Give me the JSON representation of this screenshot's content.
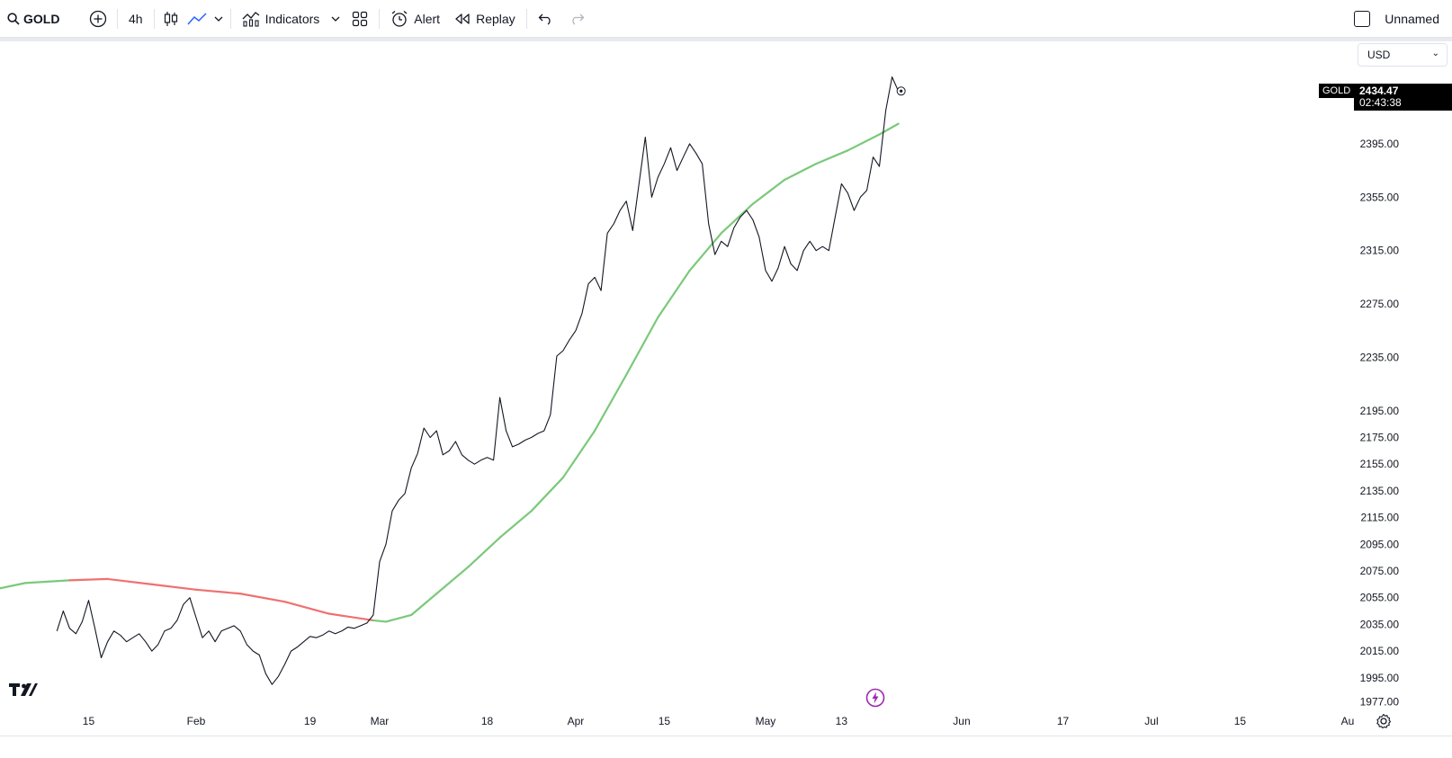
{
  "toolbar": {
    "symbol": "GOLD",
    "interval": "4h",
    "indicators_label": "Indicators",
    "alert_label": "Alert",
    "replay_label": "Replay",
    "layout_name": "Unnamed"
  },
  "chart": {
    "currency": "USD",
    "symbol_tag": "GOLD",
    "last_price": "2434.47",
    "countdown": "02:43:38",
    "price_labels": [
      {
        "label": "2395.00",
        "value": 2395
      },
      {
        "label": "2355.00",
        "value": 2355
      },
      {
        "label": "2315.00",
        "value": 2315
      },
      {
        "label": "2275.00",
        "value": 2275
      },
      {
        "label": "2235.00",
        "value": 2235
      },
      {
        "label": "2195.00",
        "value": 2195
      },
      {
        "label": "2175.00",
        "value": 2175
      },
      {
        "label": "2155.00",
        "value": 2155
      },
      {
        "label": "2135.00",
        "value": 2135
      },
      {
        "label": "2115.00",
        "value": 2115
      },
      {
        "label": "2095.00",
        "value": 2095
      },
      {
        "label": "2075.00",
        "value": 2075
      },
      {
        "label": "2055.00",
        "value": 2055
      },
      {
        "label": "2035.00",
        "value": 2035
      },
      {
        "label": "2015.00",
        "value": 2015
      },
      {
        "label": "1995.00",
        "value": 1995
      },
      {
        "label": "1977.00",
        "value": 1977
      }
    ],
    "time_labels": [
      {
        "label": "15",
        "date": "2024-01-15"
      },
      {
        "label": "Feb",
        "date": "2024-02-01"
      },
      {
        "label": "19",
        "date": "2024-02-19"
      },
      {
        "label": "Mar",
        "date": "2024-03-01"
      },
      {
        "label": "18",
        "date": "2024-03-18"
      },
      {
        "label": "Apr",
        "date": "2024-04-01"
      },
      {
        "label": "15",
        "date": "2024-04-15"
      },
      {
        "label": "May",
        "date": "2024-05-01"
      },
      {
        "label": "13",
        "date": "2024-05-13"
      },
      {
        "label": "Jun",
        "date": "2024-06-01"
      },
      {
        "label": "17",
        "date": "2024-06-17"
      },
      {
        "label": "Jul",
        "date": "2024-07-01"
      },
      {
        "label": "15",
        "date": "2024-07-15"
      },
      {
        "label": "Au",
        "date": "2024-08-01"
      }
    ],
    "colors": {
      "price_line": "#131722",
      "ma_up": "#7ac97a",
      "ma_down": "#f07070"
    },
    "price_series": [
      [
        "2024-01-10",
        2030
      ],
      [
        "2024-01-11",
        2045
      ],
      [
        "2024-01-12",
        2032
      ],
      [
        "2024-01-13",
        2028
      ],
      [
        "2024-01-14",
        2037
      ],
      [
        "2024-01-15",
        2053
      ],
      [
        "2024-01-16",
        2032
      ],
      [
        "2024-01-17",
        2010
      ],
      [
        "2024-01-18",
        2022
      ],
      [
        "2024-01-19",
        2030
      ],
      [
        "2024-01-20",
        2027
      ],
      [
        "2024-01-21",
        2022
      ],
      [
        "2024-01-22",
        2025
      ],
      [
        "2024-01-23",
        2028
      ],
      [
        "2024-01-24",
        2022
      ],
      [
        "2024-01-25",
        2015
      ],
      [
        "2024-01-26",
        2020
      ],
      [
        "2024-01-27",
        2030
      ],
      [
        "2024-01-28",
        2032
      ],
      [
        "2024-01-29",
        2038
      ],
      [
        "2024-01-30",
        2050
      ],
      [
        "2024-01-31",
        2055
      ],
      [
        "2024-02-01",
        2040
      ],
      [
        "2024-02-02",
        2025
      ],
      [
        "2024-02-03",
        2030
      ],
      [
        "2024-02-04",
        2022
      ],
      [
        "2024-02-05",
        2030
      ],
      [
        "2024-02-06",
        2032
      ],
      [
        "2024-02-07",
        2034
      ],
      [
        "2024-02-08",
        2030
      ],
      [
        "2024-02-09",
        2020
      ],
      [
        "2024-02-10",
        2015
      ],
      [
        "2024-02-11",
        2012
      ],
      [
        "2024-02-12",
        1998
      ],
      [
        "2024-02-13",
        1990
      ],
      [
        "2024-02-14",
        1996
      ],
      [
        "2024-02-15",
        2005
      ],
      [
        "2024-02-16",
        2015
      ],
      [
        "2024-02-17",
        2018
      ],
      [
        "2024-02-18",
        2022
      ],
      [
        "2024-02-19",
        2026
      ],
      [
        "2024-02-20",
        2025
      ],
      [
        "2024-02-21",
        2027
      ],
      [
        "2024-02-22",
        2030
      ],
      [
        "2024-02-23",
        2028
      ],
      [
        "2024-02-24",
        2030
      ],
      [
        "2024-02-25",
        2033
      ],
      [
        "2024-02-26",
        2032
      ],
      [
        "2024-02-27",
        2034
      ],
      [
        "2024-02-28",
        2036
      ],
      [
        "2024-02-29",
        2042
      ],
      [
        "2024-03-01",
        2082
      ],
      [
        "2024-03-02",
        2095
      ],
      [
        "2024-03-03",
        2120
      ],
      [
        "2024-03-04",
        2128
      ],
      [
        "2024-03-05",
        2133
      ],
      [
        "2024-03-06",
        2152
      ],
      [
        "2024-03-07",
        2163
      ],
      [
        "2024-03-08",
        2182
      ],
      [
        "2024-03-09",
        2175
      ],
      [
        "2024-03-10",
        2180
      ],
      [
        "2024-03-11",
        2162
      ],
      [
        "2024-03-12",
        2165
      ],
      [
        "2024-03-13",
        2172
      ],
      [
        "2024-03-14",
        2162
      ],
      [
        "2024-03-15",
        2158
      ],
      [
        "2024-03-16",
        2155
      ],
      [
        "2024-03-17",
        2158
      ],
      [
        "2024-03-18",
        2160
      ],
      [
        "2024-03-19",
        2158
      ],
      [
        "2024-03-20",
        2205
      ],
      [
        "2024-03-21",
        2180
      ],
      [
        "2024-03-22",
        2168
      ],
      [
        "2024-03-23",
        2170
      ],
      [
        "2024-03-24",
        2173
      ],
      [
        "2024-03-25",
        2175
      ],
      [
        "2024-03-26",
        2178
      ],
      [
        "2024-03-27",
        2180
      ],
      [
        "2024-03-28",
        2192
      ],
      [
        "2024-03-29",
        2236
      ],
      [
        "2024-03-30",
        2240
      ],
      [
        "2024-03-31",
        2248
      ],
      [
        "2024-04-01",
        2255
      ],
      [
        "2024-04-02",
        2268
      ],
      [
        "2024-04-03",
        2290
      ],
      [
        "2024-04-04",
        2295
      ],
      [
        "2024-04-05",
        2285
      ],
      [
        "2024-04-06",
        2328
      ],
      [
        "2024-04-07",
        2335
      ],
      [
        "2024-04-08",
        2345
      ],
      [
        "2024-04-09",
        2352
      ],
      [
        "2024-04-10",
        2330
      ],
      [
        "2024-04-11",
        2365
      ],
      [
        "2024-04-12",
        2400
      ],
      [
        "2024-04-13",
        2355
      ],
      [
        "2024-04-14",
        2370
      ],
      [
        "2024-04-15",
        2380
      ],
      [
        "2024-04-16",
        2392
      ],
      [
        "2024-04-17",
        2375
      ],
      [
        "2024-04-18",
        2385
      ],
      [
        "2024-04-19",
        2395
      ],
      [
        "2024-04-20",
        2388
      ],
      [
        "2024-04-21",
        2380
      ],
      [
        "2024-04-22",
        2335
      ],
      [
        "2024-04-23",
        2312
      ],
      [
        "2024-04-24",
        2322
      ],
      [
        "2024-04-25",
        2318
      ],
      [
        "2024-04-26",
        2332
      ],
      [
        "2024-04-27",
        2340
      ],
      [
        "2024-04-28",
        2345
      ],
      [
        "2024-04-29",
        2338
      ],
      [
        "2024-04-30",
        2325
      ],
      [
        "2024-05-01",
        2300
      ],
      [
        "2024-05-02",
        2292
      ],
      [
        "2024-05-03",
        2302
      ],
      [
        "2024-05-04",
        2318
      ],
      [
        "2024-05-05",
        2305
      ],
      [
        "2024-05-06",
        2300
      ],
      [
        "2024-05-07",
        2315
      ],
      [
        "2024-05-08",
        2322
      ],
      [
        "2024-05-09",
        2315
      ],
      [
        "2024-05-10",
        2318
      ],
      [
        "2024-05-11",
        2315
      ],
      [
        "2024-05-12",
        2340
      ],
      [
        "2024-05-13",
        2365
      ],
      [
        "2024-05-14",
        2358
      ],
      [
        "2024-05-15",
        2345
      ],
      [
        "2024-05-16",
        2355
      ],
      [
        "2024-05-17",
        2360
      ],
      [
        "2024-05-18",
        2385
      ],
      [
        "2024-05-19",
        2378
      ],
      [
        "2024-05-20",
        2420
      ],
      [
        "2024-05-21",
        2445
      ],
      [
        "2024-05-22",
        2434.47
      ]
    ],
    "ma_series": [
      [
        "2024-01-01",
        2062,
        "up"
      ],
      [
        "2024-01-05",
        2066,
        "up"
      ],
      [
        "2024-01-12",
        2068,
        "up"
      ],
      [
        "2024-01-18",
        2069,
        "down"
      ],
      [
        "2024-01-25",
        2065,
        "down"
      ],
      [
        "2024-02-01",
        2061,
        "down"
      ],
      [
        "2024-02-08",
        2058,
        "down"
      ],
      [
        "2024-02-15",
        2052,
        "down"
      ],
      [
        "2024-02-22",
        2043,
        "down"
      ],
      [
        "2024-02-29",
        2038,
        "down"
      ],
      [
        "2024-03-02",
        2037,
        "up"
      ],
      [
        "2024-03-06",
        2042,
        "up"
      ],
      [
        "2024-03-10",
        2058,
        "up"
      ],
      [
        "2024-03-15",
        2078,
        "up"
      ],
      [
        "2024-03-20",
        2100,
        "up"
      ],
      [
        "2024-03-25",
        2120,
        "up"
      ],
      [
        "2024-03-30",
        2145,
        "up"
      ],
      [
        "2024-04-04",
        2180,
        "up"
      ],
      [
        "2024-04-09",
        2222,
        "up"
      ],
      [
        "2024-04-14",
        2265,
        "up"
      ],
      [
        "2024-04-19",
        2300,
        "up"
      ],
      [
        "2024-04-24",
        2328,
        "up"
      ],
      [
        "2024-04-29",
        2350,
        "up"
      ],
      [
        "2024-05-04",
        2368,
        "up"
      ],
      [
        "2024-05-09",
        2380,
        "up"
      ],
      [
        "2024-05-14",
        2390,
        "up"
      ],
      [
        "2024-05-19",
        2402,
        "up"
      ],
      [
        "2024-05-22",
        2410,
        "up"
      ]
    ],
    "time_range": [
      "2024-01-01",
      "2024-08-02"
    ],
    "price_range": [
      1973.3,
      2471.7
    ]
  }
}
